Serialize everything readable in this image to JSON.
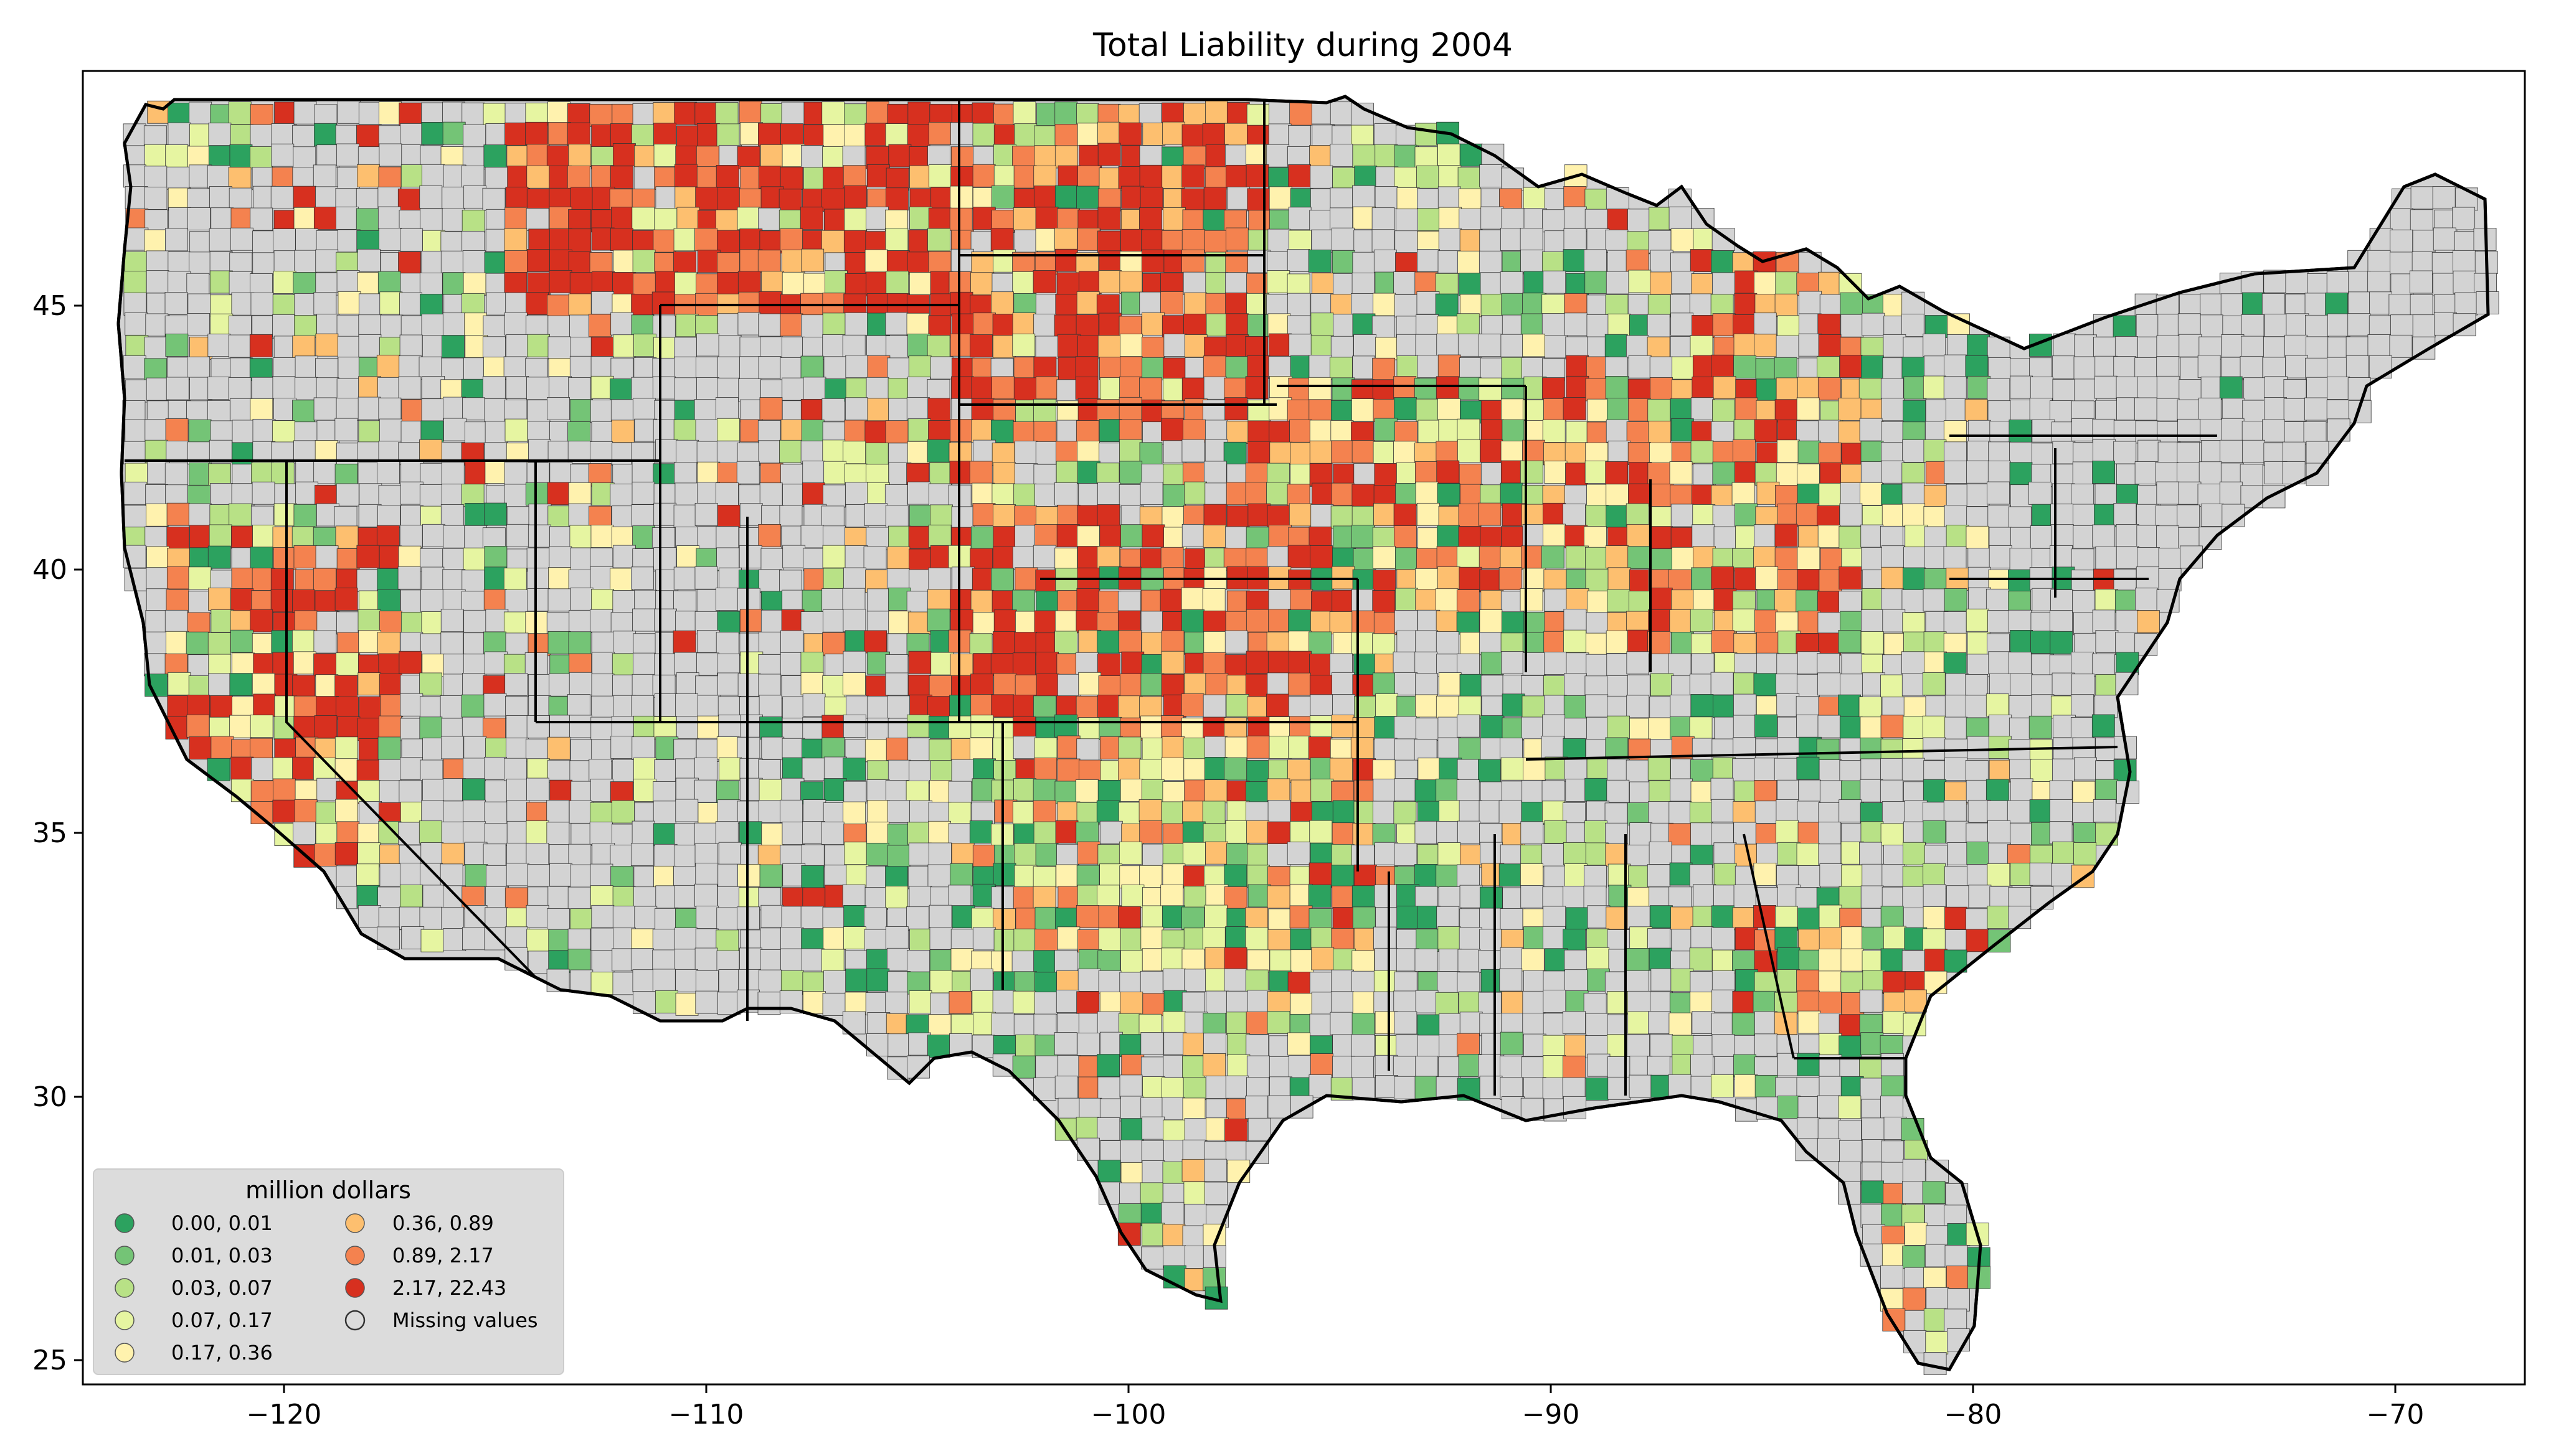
{
  "title": "Total Liability during 2004",
  "axes": {
    "x_ticks": [
      "−120",
      "−110",
      "−100",
      "−90",
      "−80",
      "−70"
    ],
    "y_ticks": [
      "25",
      "30",
      "35",
      "40",
      "45"
    ]
  },
  "legend": {
    "title": "million dollars",
    "items": [
      {
        "label": "0.00,  0.01",
        "color": "#2ca25f"
      },
      {
        "label": "0.01,  0.03",
        "color": "#74c476"
      },
      {
        "label": "0.03,  0.07",
        "color": "#b8e186"
      },
      {
        "label": "0.07,  0.17",
        "color": "#e6f5a1"
      },
      {
        "label": "0.17,  0.36",
        "color": "#fff2ae"
      },
      {
        "label": "0.36,  0.89",
        "color": "#fdbf6f"
      },
      {
        "label": "0.89,  2.17",
        "color": "#f4824f"
      },
      {
        "label": "2.17, 22.43",
        "color": "#d7301f"
      },
      {
        "label": "Missing values",
        "color": "#d3d3d3"
      }
    ]
  },
  "colors": {
    "missing": "#d3d3d3",
    "border": "#000000",
    "background": "#ffffff",
    "legend_bg": "#dcdcdc"
  },
  "chart_data": {
    "type": "choropleth",
    "title": "Total Liability during 2004",
    "unit": "million dollars",
    "xlim": [
      -124.9,
      -66.9
    ],
    "ylim": [
      24.5,
      49.5
    ],
    "x_ticks": [
      -120,
      -110,
      -100,
      -90,
      -80,
      -70
    ],
    "y_ticks": [
      25,
      30,
      35,
      40,
      45
    ],
    "bins": [
      [
        0.0,
        0.01
      ],
      [
        0.01,
        0.03
      ],
      [
        0.03,
        0.07
      ],
      [
        0.07,
        0.17
      ],
      [
        0.17,
        0.36
      ],
      [
        0.36,
        0.89
      ],
      [
        0.89,
        2.17
      ],
      [
        2.17,
        22.43
      ]
    ],
    "legend_placement": "lower-left",
    "grid": false
  }
}
